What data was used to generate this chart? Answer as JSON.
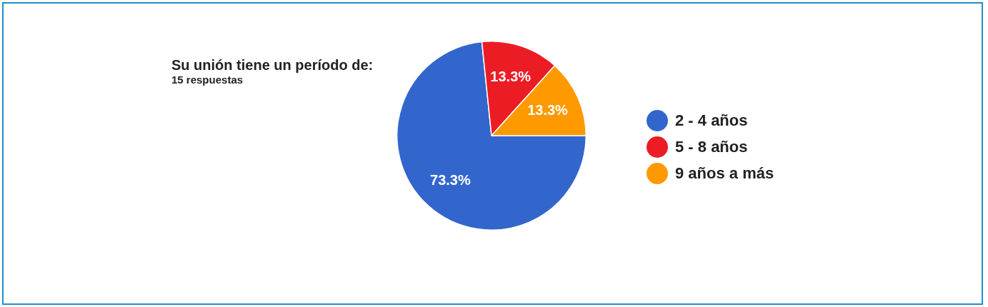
{
  "chart_data": {
    "type": "pie",
    "title": "Su unión tiene un período de:",
    "subtitle": "15 respuestas",
    "categories": [
      "2 - 4 años",
      "5 - 8 años",
      "9 años a más"
    ],
    "values": [
      73.3,
      13.3,
      13.3
    ],
    "colors": [
      "#3366cc",
      "#ec1c24",
      "#ff9900"
    ],
    "value_labels": [
      "73.3%",
      "13.3%",
      "13.3%"
    ],
    "legend": "right"
  }
}
